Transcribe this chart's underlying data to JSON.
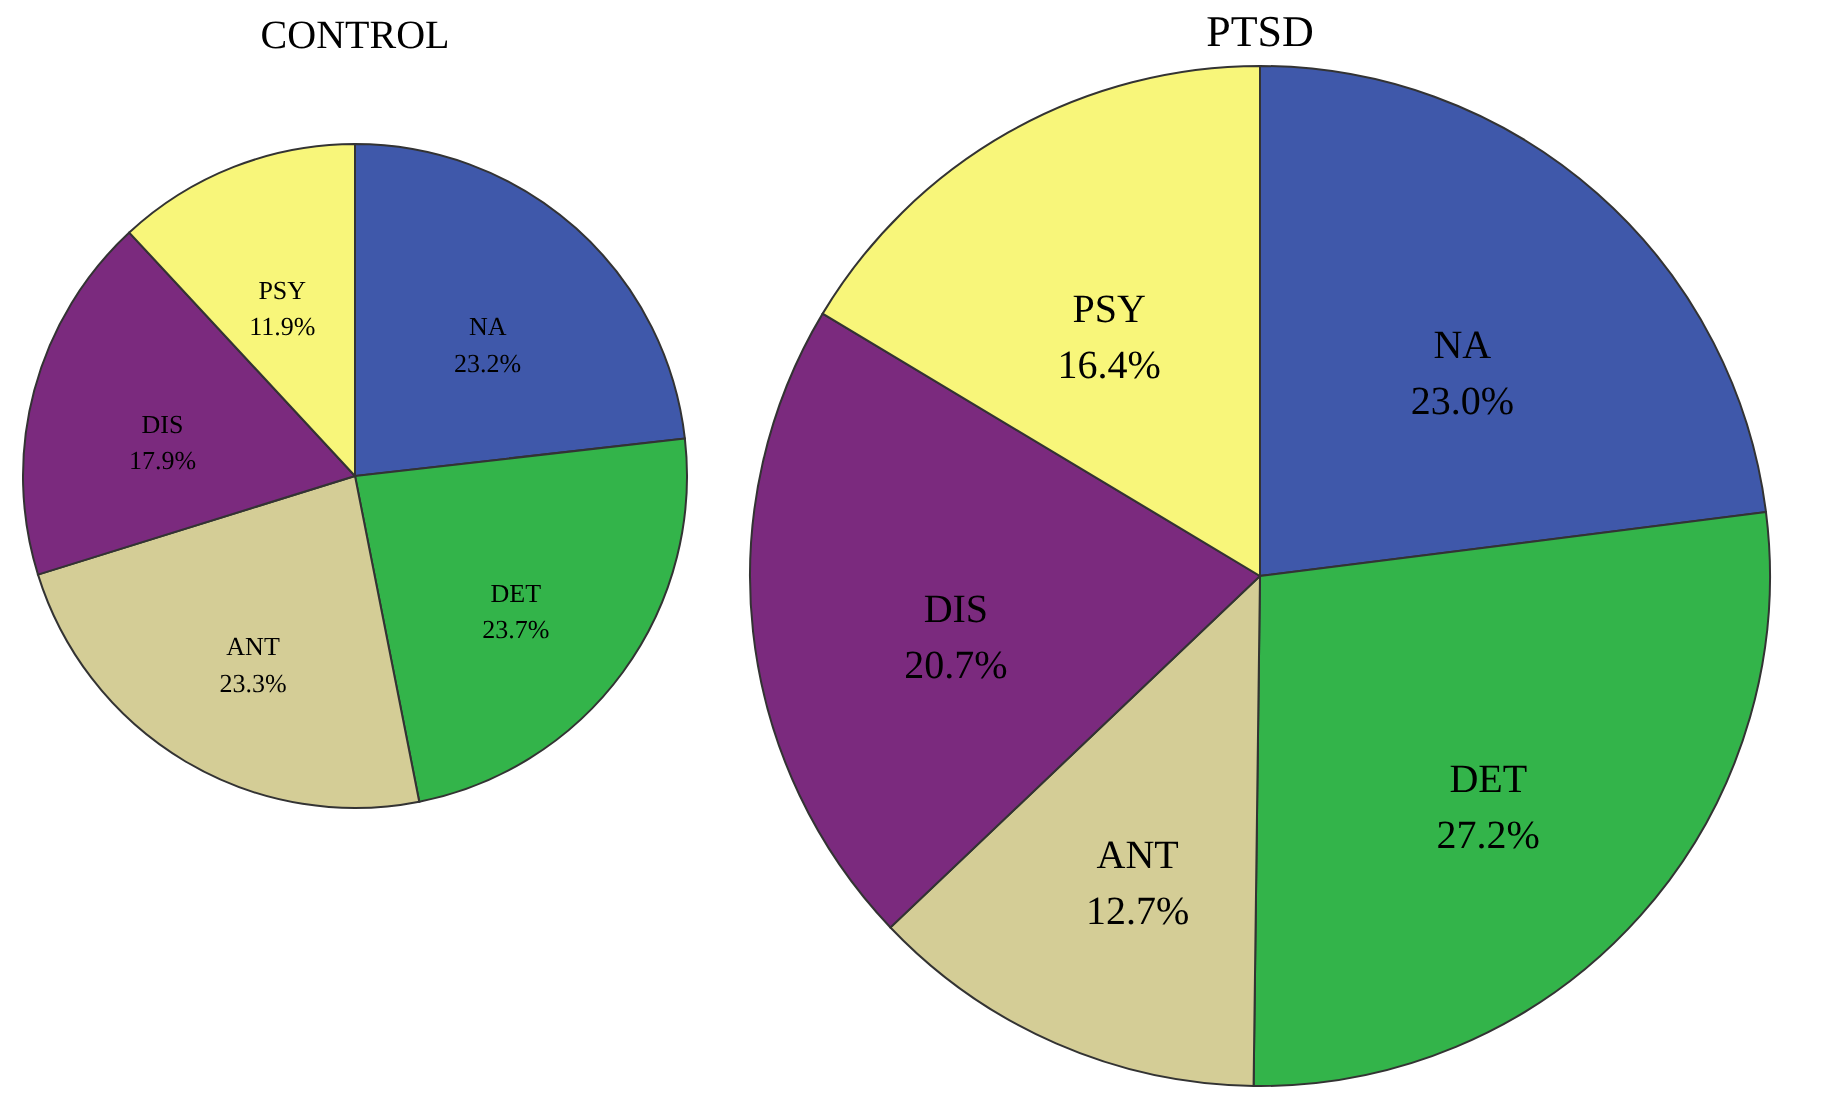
{
  "chart_data": [
    {
      "type": "pie",
      "title": "CONTROL",
      "categories": [
        "NA",
        "DET",
        "ANT",
        "DIS",
        "PSY"
      ],
      "values": [
        23.2,
        23.7,
        23.3,
        17.9,
        11.9
      ],
      "value_labels": [
        "23.2%",
        "23.7%",
        "23.3%",
        "17.9%",
        "11.9%"
      ],
      "colors": [
        "#3f58aa",
        "#33b44a",
        "#d4cd96",
        "#7b2a7e",
        "#f8f67a"
      ]
    },
    {
      "type": "pie",
      "title": "PTSD",
      "categories": [
        "NA",
        "DET",
        "ANT",
        "DIS",
        "PSY"
      ],
      "values": [
        23.0,
        27.2,
        12.7,
        20.7,
        16.4
      ],
      "value_labels": [
        "23.0%",
        "27.2%",
        "12.7%",
        "20.7%",
        "16.4%"
      ],
      "colors": [
        "#3f58aa",
        "#33b44a",
        "#d4cd96",
        "#7b2a7e",
        "#f8f67a"
      ]
    }
  ]
}
